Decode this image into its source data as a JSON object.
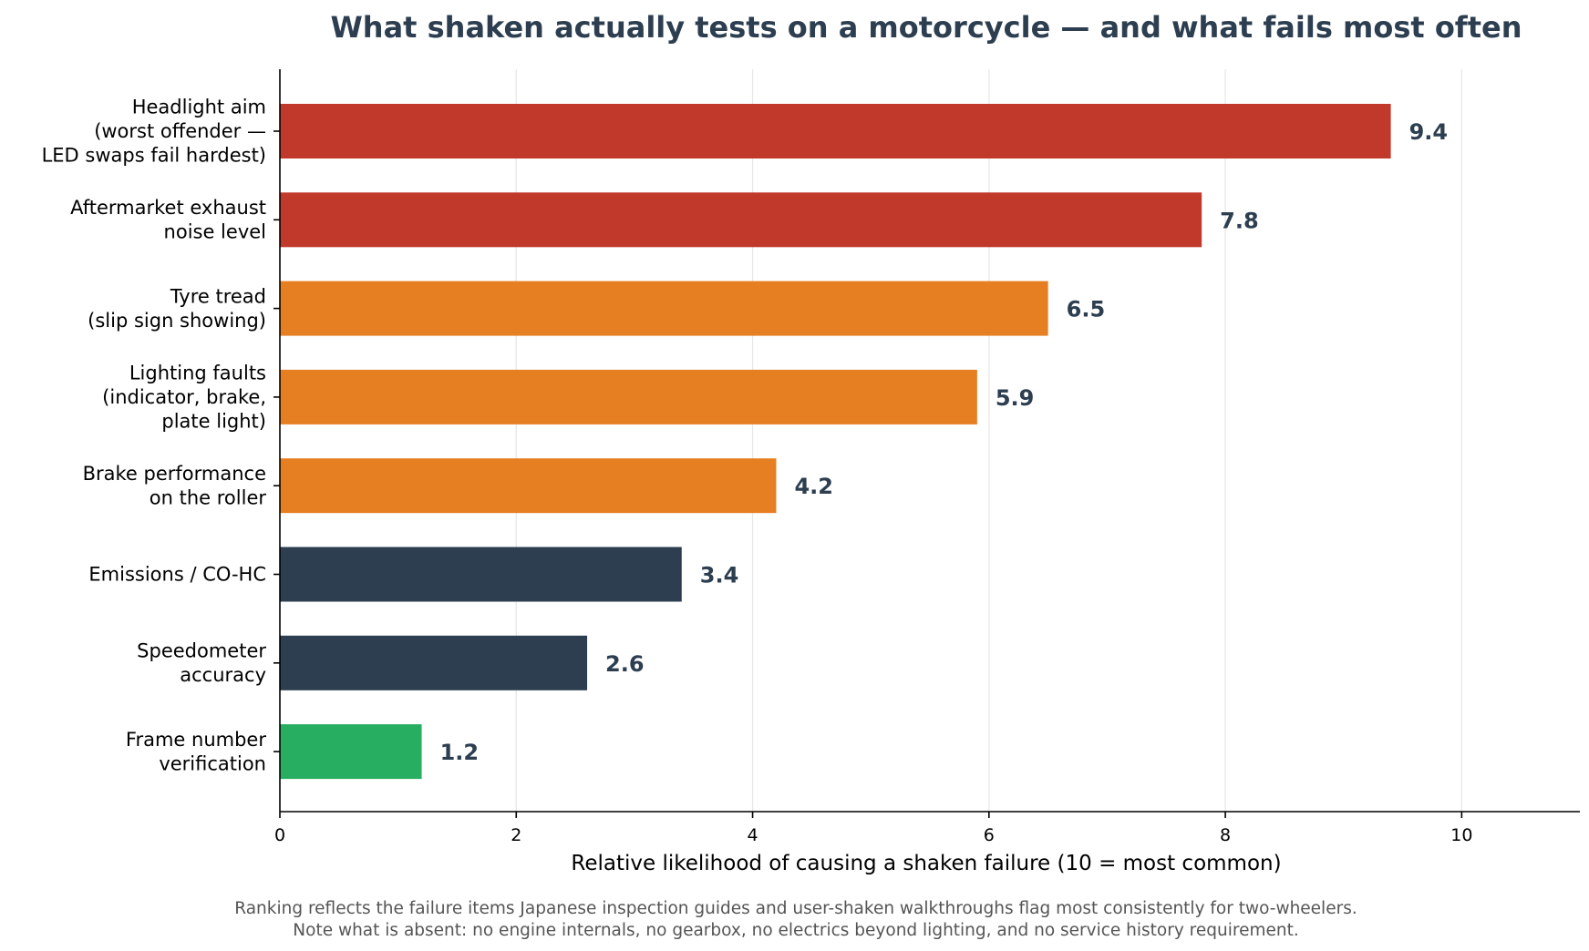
{
  "chart_data": {
    "type": "bar",
    "orientation": "horizontal",
    "title": "What shaken actually tests on a motorcycle — and what fails most often",
    "xlabel": "Relative likelihood of causing a shaken failure (10 = most common)",
    "ylabel": "",
    "xlim": [
      0,
      11
    ],
    "xticks": [
      "0",
      "2",
      "4",
      "6",
      "8",
      "10"
    ],
    "grid": "vertical",
    "categories": [
      [
        "Headlight aim",
        "(worst offender —",
        "LED swaps fail hardest)"
      ],
      [
        "Aftermarket exhaust",
        "noise level"
      ],
      [
        "Tyre tread",
        "(slip sign showing)"
      ],
      [
        "Lighting faults",
        "(indicator, brake,",
        "plate light)"
      ],
      [
        "Brake performance",
        "on the roller"
      ],
      [
        "Emissions / CO-HC"
      ],
      [
        "Speedometer",
        "accuracy"
      ],
      [
        "Frame number",
        "verification"
      ]
    ],
    "values": [
      9.4,
      7.8,
      6.5,
      5.9,
      4.2,
      3.4,
      2.6,
      1.2
    ],
    "value_labels": [
      "9.4",
      "7.8",
      "6.5",
      "5.9",
      "4.2",
      "3.4",
      "2.6",
      "1.2"
    ],
    "colors": [
      "#c0392b",
      "#c0392b",
      "#e67e22",
      "#e67e22",
      "#e67e22",
      "#2c3e50",
      "#2c3e50",
      "#27ae60"
    ],
    "footnote": [
      "Ranking reflects the failure items Japanese inspection guides and user-shaken walkthroughs flag most consistently for two-wheelers.",
      "Note what is absent: no engine internals, no gearbox, no electrics beyond lighting, and no service history requirement."
    ]
  }
}
